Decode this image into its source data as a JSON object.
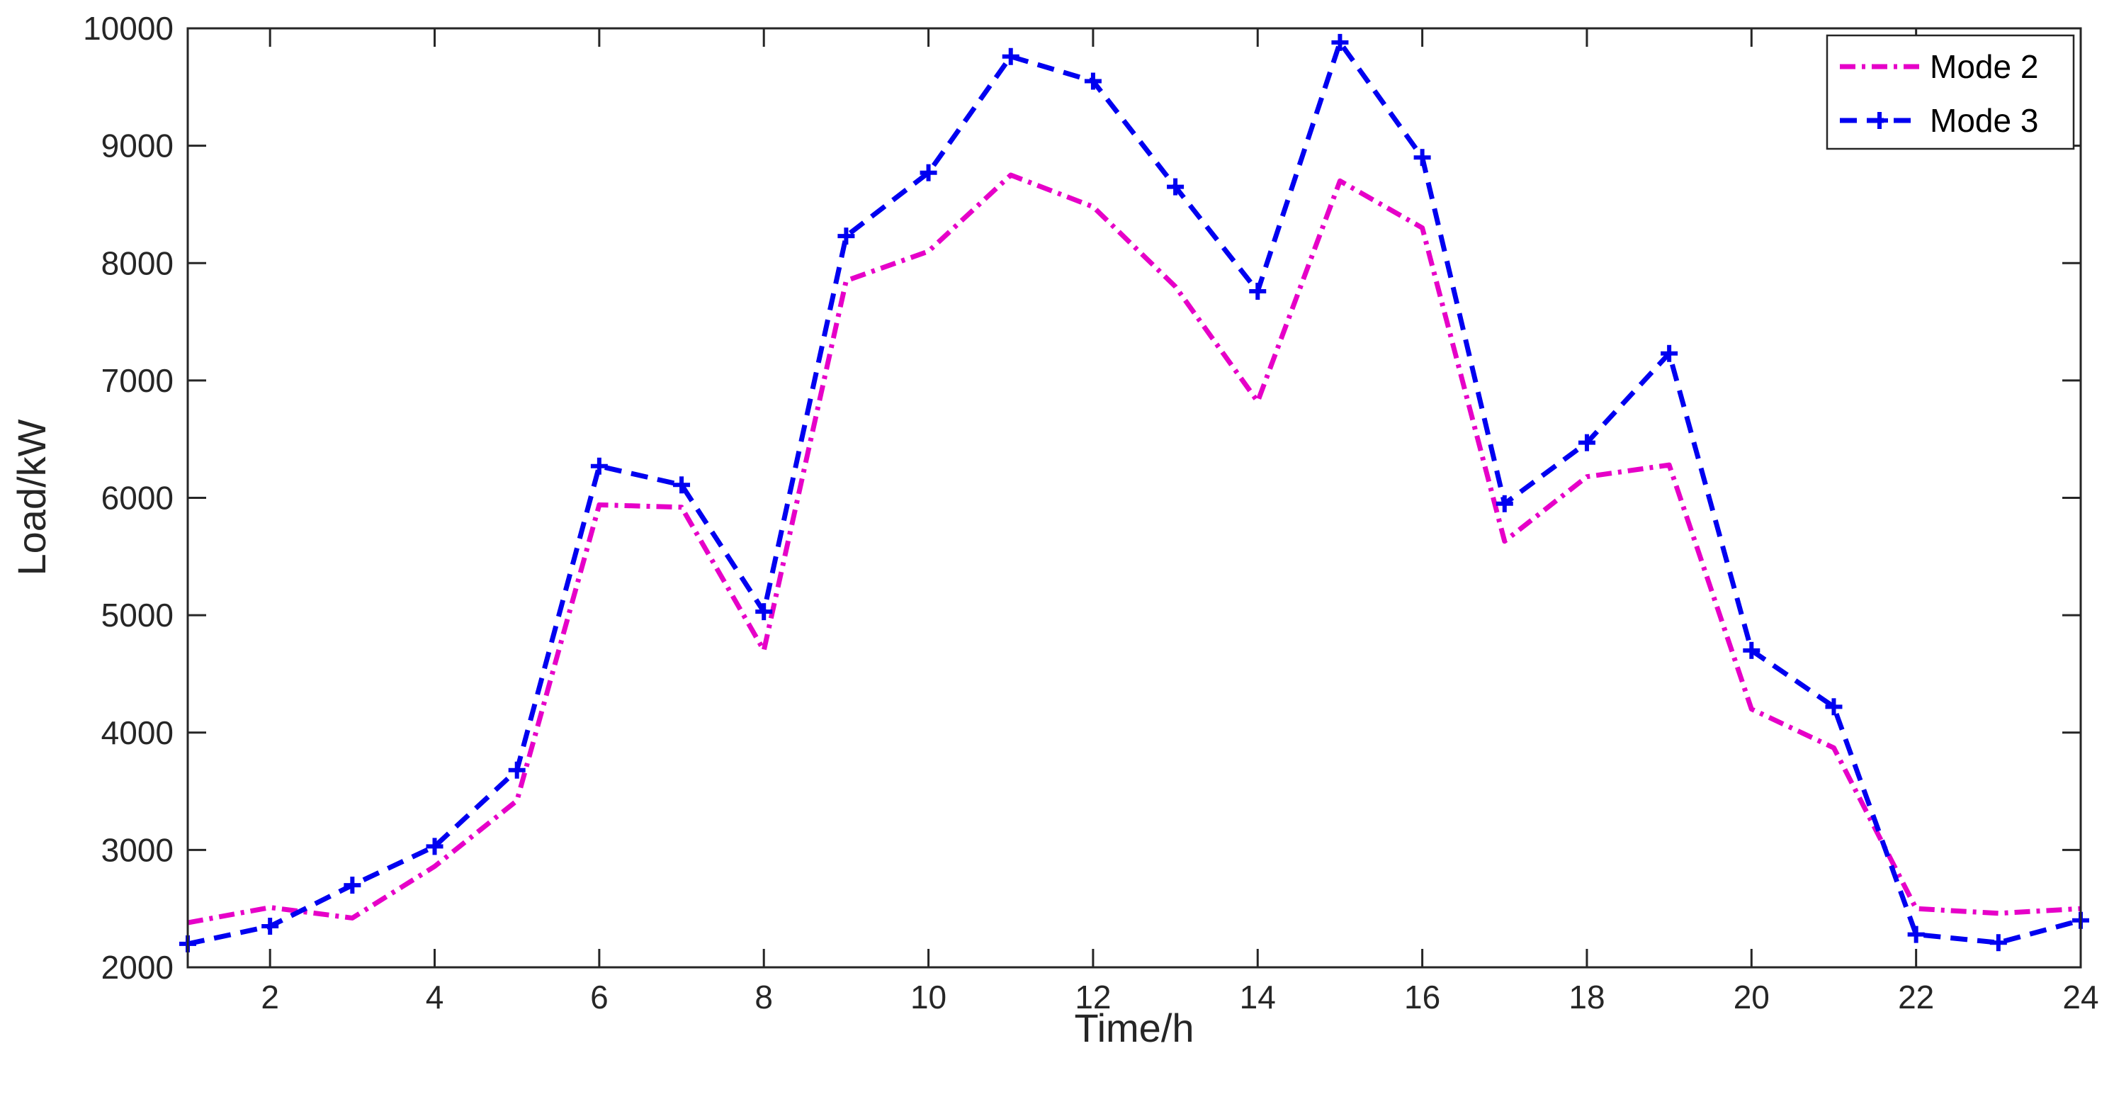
{
  "chart_data": {
    "type": "line",
    "title": "",
    "xlabel": "Time/h",
    "ylabel": "Load/kW",
    "xlim": [
      1,
      24
    ],
    "ylim": [
      2000,
      10000
    ],
    "xticks": [
      2,
      4,
      6,
      8,
      10,
      12,
      14,
      16,
      18,
      20,
      22,
      24
    ],
    "yticks": [
      2000,
      3000,
      4000,
      5000,
      6000,
      7000,
      8000,
      9000,
      10000
    ],
    "grid": false,
    "legend_position": "top-right",
    "x": [
      1,
      2,
      3,
      4,
      5,
      6,
      7,
      8,
      9,
      10,
      11,
      12,
      13,
      14,
      15,
      16,
      17,
      18,
      19,
      20,
      21,
      22,
      23,
      24
    ],
    "series": [
      {
        "name": "Mode 2",
        "color": "#E600C8",
        "line_style": "dash-dot",
        "marker": "none",
        "values": [
          2380,
          2510,
          2420,
          2860,
          3420,
          5940,
          5920,
          4700,
          7850,
          8100,
          8750,
          8480,
          7800,
          6820,
          8700,
          8300,
          5630,
          6180,
          6280,
          4200,
          3870,
          2500,
          2460,
          2500
        ]
      },
      {
        "name": "Mode 3",
        "color": "#0000F0",
        "line_style": "dashed",
        "marker": "plus",
        "values": [
          2200,
          2350,
          2700,
          3030,
          3680,
          6270,
          6110,
          5030,
          8230,
          8770,
          9760,
          9550,
          8650,
          7760,
          9880,
          8900,
          5950,
          6470,
          7230,
          4700,
          4220,
          2280,
          2210,
          2400
        ]
      }
    ]
  }
}
